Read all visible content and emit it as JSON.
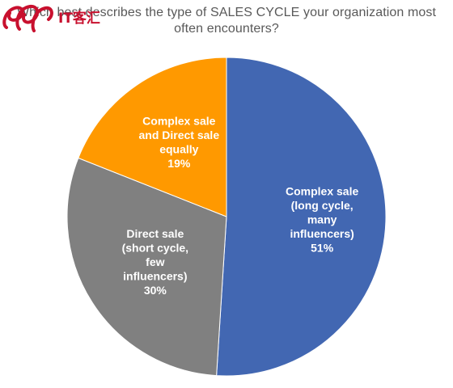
{
  "chart_data": {
    "type": "pie",
    "title_lines": [
      "Which best describes the type of SALES CYCLE your organization most",
      "often encounters?"
    ],
    "slices": [
      {
        "label_lines": [
          "Complex sale",
          "(long cycle,",
          "many",
          "influencers)"
        ],
        "percent_label": "51%",
        "value": 51,
        "color": "#4267B2"
      },
      {
        "label_lines": [
          "Direct sale",
          "(short cycle,",
          "few",
          "influencers)"
        ],
        "percent_label": "30%",
        "value": 30,
        "color": "#808080"
      },
      {
        "label_lines": [
          "Complex sale",
          "and Direct sale",
          "equally"
        ],
        "percent_label": "19%",
        "value": 19,
        "color": "#FF9900"
      }
    ],
    "label_color": "#ffffff"
  },
  "watermark": {
    "logo_text": "IT客汇",
    "color": "#C8102E"
  }
}
